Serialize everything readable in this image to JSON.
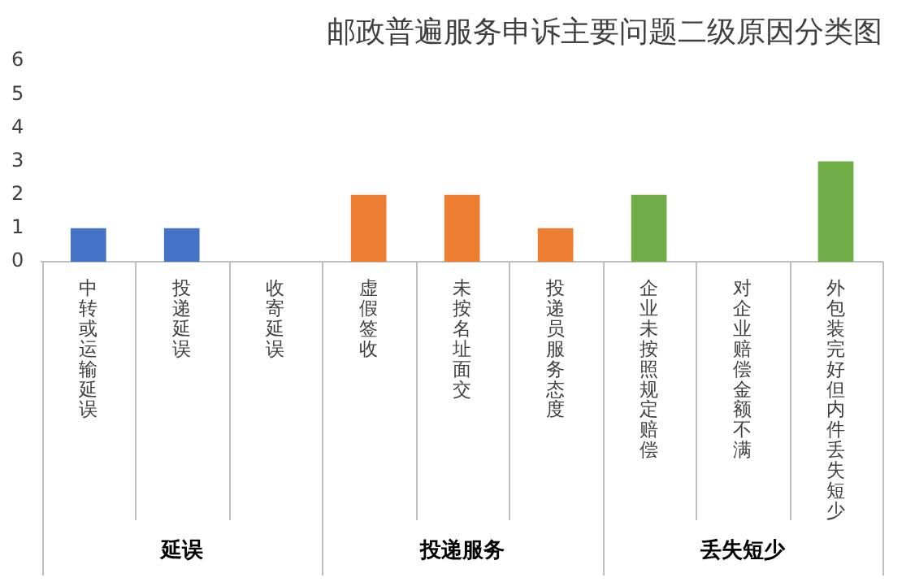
{
  "chart_data": {
    "type": "bar",
    "title": "邮政普遍服务申诉主要问题二级原因分类图",
    "categories": [
      "中转或运输延误",
      "投递延误",
      "收寄延误",
      "虚假签收",
      "未按名址面交",
      "投递员服务态度",
      "企业未按照规定赔偿",
      "对企业赔偿金额不满",
      "外包装完好但内件丢失短少"
    ],
    "series": [
      {
        "color": "#4472c4",
        "values": [
          1,
          1,
          0,
          null,
          null,
          null,
          null,
          null,
          null
        ]
      },
      {
        "color": "#ed7d31",
        "values": [
          null,
          null,
          null,
          2,
          2,
          1,
          null,
          null,
          null
        ]
      },
      {
        "color": "#70ad47",
        "values": [
          null,
          null,
          null,
          null,
          null,
          null,
          2,
          0,
          3
        ]
      }
    ],
    "annotations": [
      "延误",
      "投递服务",
      "丢失短少"
    ],
    "ylim": [
      0,
      6
    ],
    "yticks": [
      0,
      1,
      2,
      3,
      4,
      5,
      6
    ],
    "grid": false,
    "legend": false
  }
}
